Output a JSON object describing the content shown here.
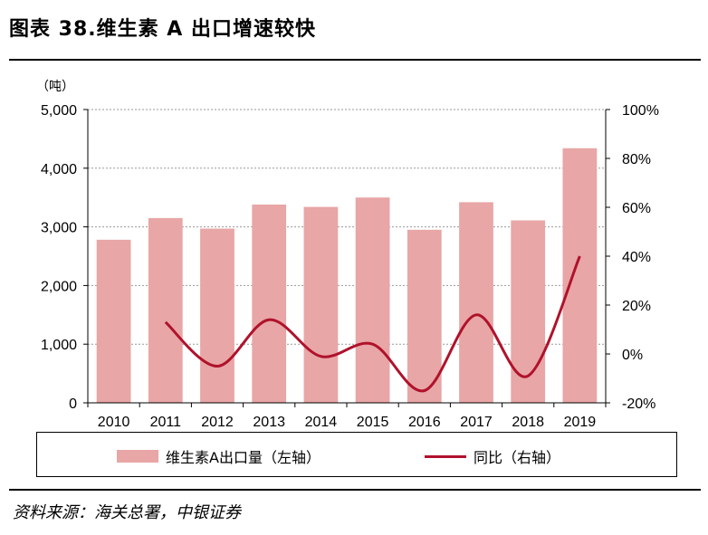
{
  "title": "图表 38.维生素 A 出口增速较快",
  "source": "资料来源：海关总署，中银证券",
  "colors": {
    "bar": "#e8a6a6",
    "line": "#b0122b",
    "grid": "#999999"
  },
  "chart_data": {
    "type": "bar",
    "categories": [
      "2010",
      "2011",
      "2012",
      "2013",
      "2014",
      "2015",
      "2016",
      "2017",
      "2018",
      "2019"
    ],
    "series": [
      {
        "name": "维生素A出口量（左轴）",
        "type": "bar",
        "axis": "left",
        "values": [
          2780,
          3150,
          2970,
          3380,
          3340,
          3500,
          2950,
          3420,
          3110,
          4340
        ]
      },
      {
        "name": "同比（右轴）",
        "type": "line",
        "axis": "right",
        "values": [
          null,
          13,
          -5,
          14,
          -1,
          4,
          -15,
          16,
          -9,
          40
        ]
      }
    ],
    "y_left": {
      "unit": "（吨）",
      "ylim": [
        0,
        5000
      ],
      "ticks": [
        "0",
        "1,000",
        "2,000",
        "3,000",
        "4,000",
        "5,000"
      ]
    },
    "y_right": {
      "ylim": [
        -20,
        100
      ],
      "ticks": [
        "-20%",
        "0%",
        "20%",
        "40%",
        "60%",
        "80%",
        "100%"
      ]
    },
    "grid": true,
    "legend": "bottom"
  }
}
